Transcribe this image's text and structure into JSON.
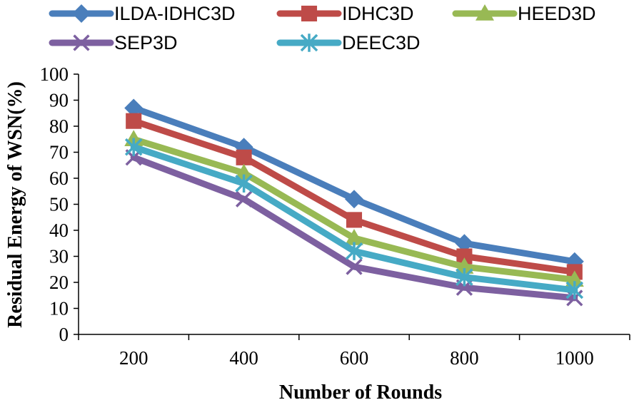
{
  "chart_data": {
    "type": "line",
    "title": "",
    "xlabel": "Number of Rounds",
    "ylabel": "Residual Energy of WSN(%)",
    "categories": [
      "200",
      "400",
      "600",
      "800",
      "1000"
    ],
    "ylim": [
      0,
      100
    ],
    "yticks": [
      "0",
      "10",
      "20",
      "30",
      "40",
      "50",
      "60",
      "70",
      "80",
      "90",
      "100"
    ],
    "grid": false,
    "legend_position": "top",
    "series": [
      {
        "name": "ILDA-IDHC3D",
        "marker": "diamond",
        "color": "#4A7EBB",
        "values": [
          87,
          72,
          52,
          35,
          28
        ]
      },
      {
        "name": "IDHC3D",
        "marker": "square",
        "color": "#BE4B48",
        "values": [
          82,
          68,
          44,
          30,
          24
        ]
      },
      {
        "name": "HEED3D",
        "marker": "triangle",
        "color": "#98B954",
        "values": [
          75,
          62,
          37,
          26,
          21
        ]
      },
      {
        "name": "SEP3D",
        "marker": "x",
        "color": "#7D60A0",
        "values": [
          68,
          52,
          26,
          18,
          14
        ]
      },
      {
        "name": "DEEC3D",
        "marker": "star",
        "color": "#46AAC5",
        "values": [
          72,
          58,
          32,
          22,
          17
        ]
      }
    ]
  }
}
